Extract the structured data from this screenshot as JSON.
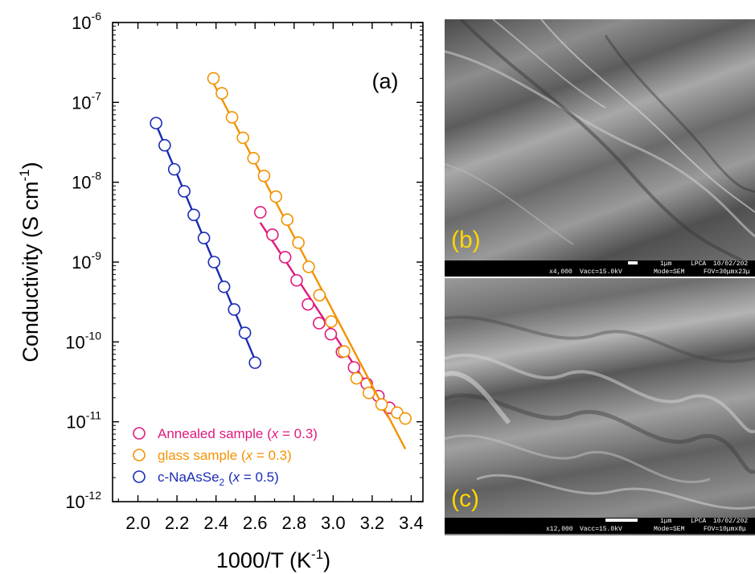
{
  "chart_data": {
    "type": "scatter",
    "panel_label": "(a)",
    "xlabel_base": "1000/T (K",
    "xlabel_sup": "-1",
    "xlabel_end": ")",
    "ylabel_base": "Conductivity (S cm",
    "ylabel_sup": "-1",
    "ylabel_end": ")",
    "xlim": [
      1.87,
      3.46
    ],
    "ylim_exp": [
      -12,
      -6
    ],
    "yscale": "log",
    "x_ticks": [
      "2.0",
      "2.2",
      "2.4",
      "2.6",
      "2.8",
      "3.0",
      "3.2",
      "3.4"
    ],
    "y_ticks": [
      {
        "base": "10",
        "exp": "-12"
      },
      {
        "base": "10",
        "exp": "-11"
      },
      {
        "base": "10",
        "exp": "-10"
      },
      {
        "base": "10",
        "exp": "-9"
      },
      {
        "base": "10",
        "exp": "-8"
      },
      {
        "base": "10",
        "exp": "-7"
      },
      {
        "base": "10",
        "exp": "-6"
      }
    ],
    "legend_position": "bottom-left",
    "series": [
      {
        "name_prefix": "Annealed sample (",
        "name_var": "x",
        "name_suffix": " = 0.3)",
        "color": "#e0197d",
        "x": [
          2.627,
          2.689,
          2.754,
          2.813,
          2.871,
          2.928,
          2.988,
          3.045,
          3.107,
          3.172,
          3.232,
          3.288
        ],
        "y": [
          4.2e-09,
          2.2e-09,
          1.15e-09,
          5.9e-10,
          2.95e-10,
          1.72e-10,
          1.25e-10,
          7.5e-11,
          4.8e-11,
          3e-11,
          2.1e-11,
          1.5e-11
        ]
      },
      {
        "name_prefix": "glass sample (",
        "name_var": "x",
        "name_suffix": " = 0.3)",
        "color": "#f39200",
        "x": [
          2.387,
          2.43,
          2.482,
          2.538,
          2.592,
          2.646,
          2.707,
          2.765,
          2.822,
          2.875,
          2.93,
          2.99,
          3.056,
          3.12,
          3.183,
          3.248,
          3.328,
          3.37
        ],
        "y": [
          2e-07,
          1.3e-07,
          6.5e-08,
          3.6e-08,
          2e-08,
          1.2e-08,
          6.6e-09,
          3.4e-09,
          1.75e-09,
          8.7e-10,
          3.85e-10,
          1.8e-10,
          7.6e-11,
          3.5e-11,
          2.3e-11,
          1.65e-11,
          1.3e-11,
          1.1e-11
        ]
      },
      {
        "name_prefix": "c-NaAsSe",
        "name_sub": "2",
        "name_var": "x",
        "name_suffix": " = 0.5)",
        "name_paren": " (",
        "color": "#1a2bb5",
        "x": [
          2.093,
          2.137,
          2.186,
          2.237,
          2.286,
          2.338,
          2.39,
          2.441,
          2.493,
          2.548,
          2.6
        ],
        "y": [
          5.5e-08,
          2.9e-08,
          1.45e-08,
          7.7e-09,
          3.9e-09,
          2e-09,
          1e-09,
          4.9e-10,
          2.55e-10,
          1.3e-10,
          5.5e-11
        ]
      }
    ]
  },
  "sem_b": {
    "label": "(b)",
    "scale": "1μm",
    "mag": "x4,000",
    "vacc": "Vacc=15.0kV",
    "lab": "LPCA",
    "date": "10/02/202",
    "mode": "Mode=SEM",
    "fov": "FOV=30μmx23μ"
  },
  "sem_c": {
    "label": "(c)",
    "scale": "1μm",
    "mag": "x12,000",
    "vacc": "Vacc=15.0kV",
    "lab": "LPCA",
    "date": "10/02/202",
    "mode": "Mode=SEM",
    "fov": "FOV=10μmx8μ"
  }
}
